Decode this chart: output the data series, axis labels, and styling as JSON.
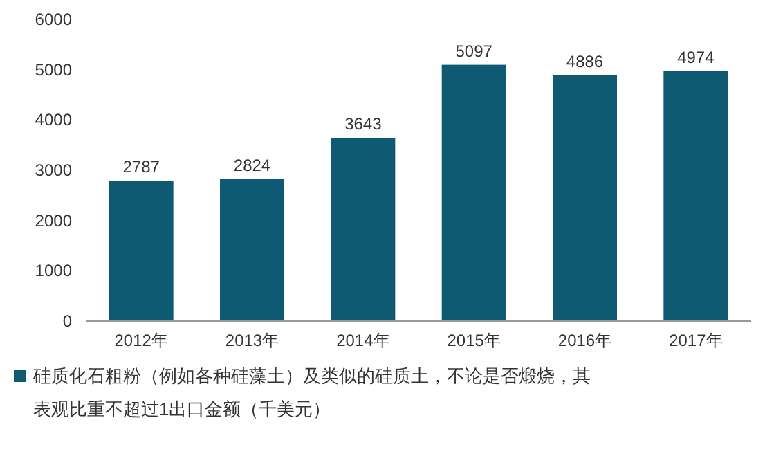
{
  "chart_data": {
    "type": "bar",
    "categories": [
      "2012年",
      "2013年",
      "2014年",
      "2015年",
      "2016年",
      "2017年"
    ],
    "series": [
      {
        "name": "硅质化石粗粉（例如各种硅藻土）及类似的硅质土，不论是否煅烧，其表观比重不超过1出口金额（千美元）",
        "color": "#0e5a73",
        "values": [
          2787,
          2824,
          3643,
          5097,
          4886,
          4974
        ]
      }
    ],
    "ylim": [
      0,
      6000
    ],
    "yticks": [
      0,
      1000,
      2000,
      3000,
      4000,
      5000,
      6000
    ],
    "data_labels": true,
    "legend": "bottom",
    "grid": false
  }
}
